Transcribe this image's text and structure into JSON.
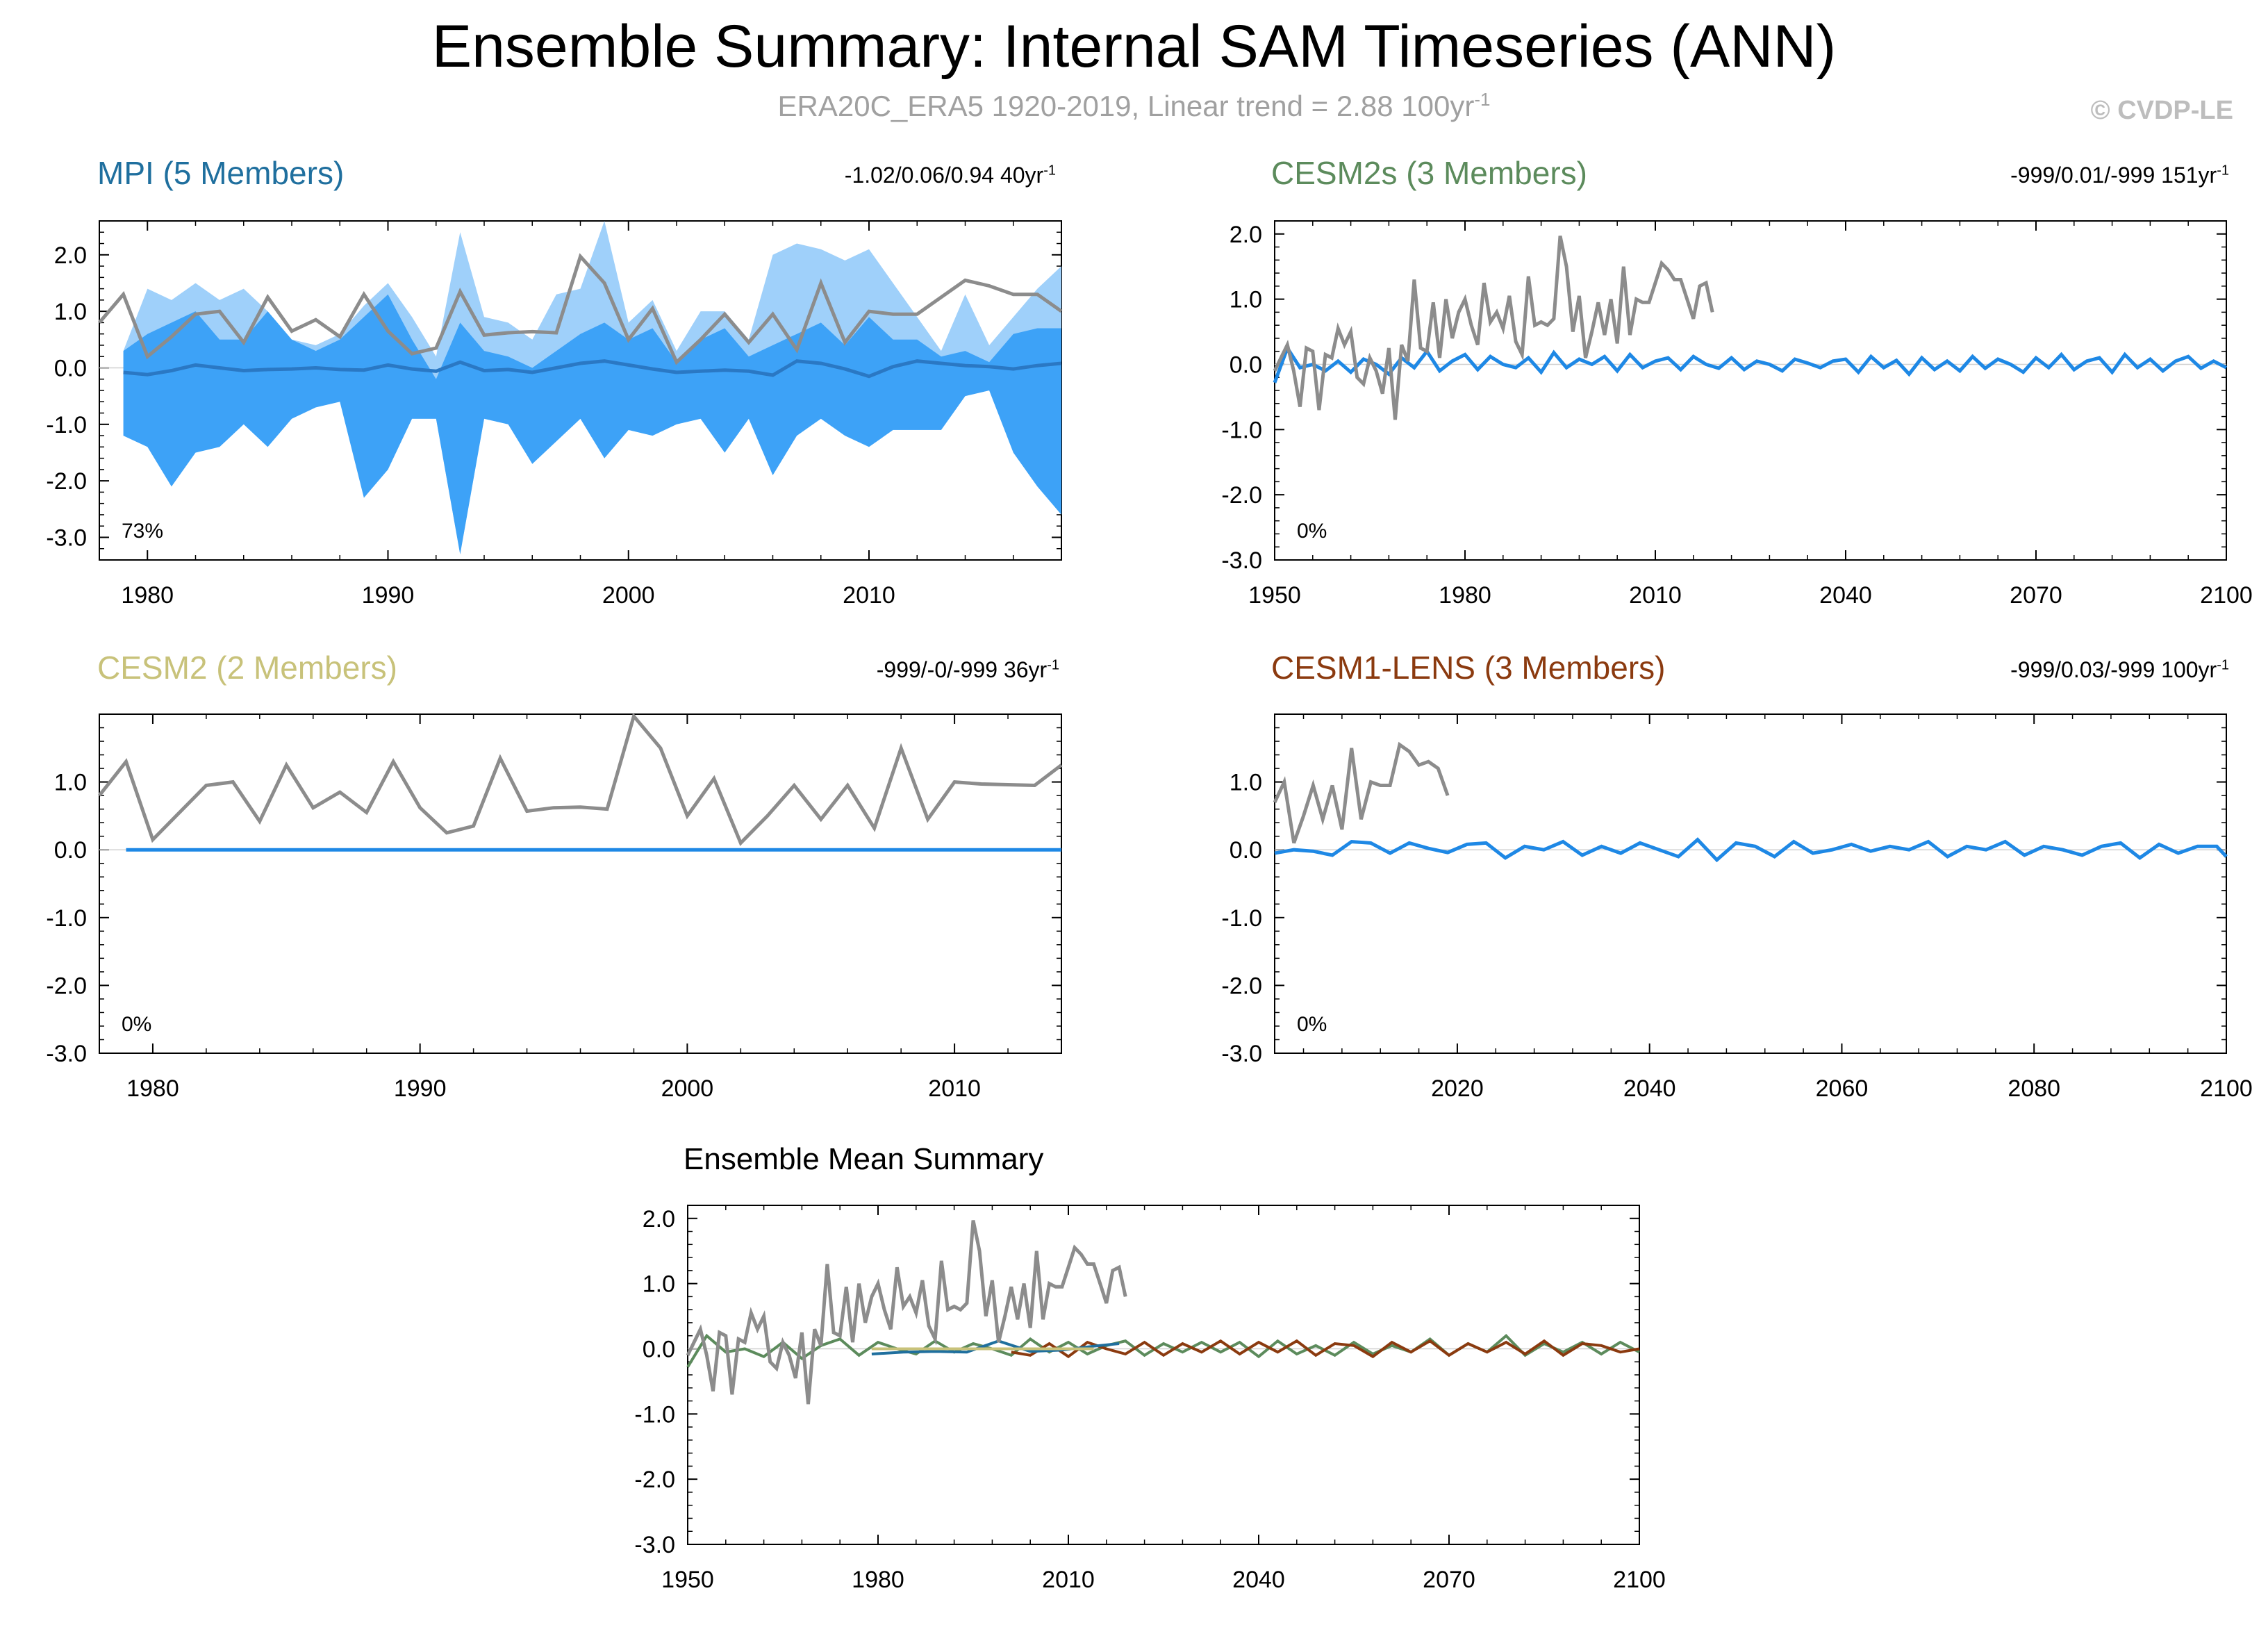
{
  "page": {
    "title": "Ensemble Summary: Internal SAM Timeseries (ANN)",
    "subtitle_main": "ERA20C_ERA5 1920-2019, Linear trend = 2.88 100yr",
    "subtitle_sup": "-1",
    "copyright": "© CVDP-LE"
  },
  "colors": {
    "obs": "#8c8c8c",
    "mean_blue": "#1e88e5",
    "spread_dark": "#3da2f7",
    "spread_light": "#9fd0fa",
    "mpi_title": "#1f6f9e",
    "cesm2s_title": "#5c8b5c",
    "cesm2_title": "#c8c27a",
    "lens_title": "#8b3a0f",
    "ens_mpi": "#1f6f9e",
    "ens_cesm2s": "#5c8b5c",
    "ens_cesm2": "#c8c27a",
    "ens_lens": "#8b3a0f"
  },
  "chart_data": [
    {
      "id": "mpi",
      "type": "area",
      "title": "MPI (5 Members)",
      "stats": "-1.02/0.06/0.94 40yr",
      "stats_sup": "-1",
      "percent": "73%",
      "x_range": [
        1978,
        2018
      ],
      "ylim": [
        -3.4,
        2.6
      ],
      "xticks": [
        1980,
        1990,
        2000,
        2010
      ],
      "yticks": [
        2.0,
        1.0,
        0.0,
        -1.0,
        -2.0,
        -3.0
      ],
      "ytick_labels": [
        "2.0",
        "1.0",
        "0.0",
        "-1.0",
        "-2.0",
        "-3.0"
      ],
      "x": [
        1979,
        1980,
        1981,
        1982,
        1983,
        1984,
        1985,
        1986,
        1987,
        1988,
        1989,
        1990,
        1991,
        1992,
        1993,
        1994,
        1995,
        1996,
        1997,
        1998,
        1999,
        2000,
        2001,
        2002,
        2003,
        2004,
        2005,
        2006,
        2007,
        2008,
        2009,
        2010,
        2011,
        2012,
        2013,
        2014,
        2015,
        2016,
        2017,
        2018
      ],
      "outer_top": [
        0.3,
        1.4,
        1.2,
        1.5,
        1.2,
        1.4,
        1.0,
        0.5,
        0.4,
        0.6,
        1.1,
        1.5,
        0.9,
        0.2,
        2.4,
        0.9,
        0.8,
        0.5,
        1.3,
        1.4,
        2.6,
        0.8,
        1.2,
        0.3,
        1.0,
        1.0,
        0.5,
        2.0,
        2.2,
        2.1,
        1.9,
        2.1,
        1.5,
        0.9,
        0.3,
        1.3,
        0.4,
        0.9,
        1.4,
        1.8
      ],
      "inner_top": [
        0.3,
        0.6,
        0.8,
        1.0,
        0.5,
        0.5,
        1.0,
        0.5,
        0.3,
        0.5,
        0.9,
        1.3,
        0.5,
        -0.2,
        0.8,
        0.3,
        0.2,
        0.0,
        0.3,
        0.6,
        0.8,
        0.5,
        0.7,
        0.1,
        0.5,
        0.7,
        0.2,
        0.4,
        0.6,
        0.8,
        0.4,
        0.9,
        0.5,
        0.5,
        0.2,
        0.3,
        0.1,
        0.6,
        0.7,
        0.7
      ],
      "inner_bottom": [
        -1.2,
        -1.4,
        -2.1,
        -1.5,
        -1.4,
        -1.0,
        -1.4,
        -0.9,
        -0.7,
        -0.6,
        -2.3,
        -1.8,
        -0.9,
        -0.9,
        -3.3,
        -0.9,
        -1.0,
        -1.7,
        -1.3,
        -0.9,
        -1.6,
        -1.1,
        -1.2,
        -1.0,
        -0.9,
        -1.5,
        -0.9,
        -1.9,
        -1.2,
        -0.9,
        -1.2,
        -1.4,
        -1.1,
        -1.1,
        -1.1,
        -0.5,
        -0.4,
        -1.5,
        -2.1,
        -2.6
      ],
      "mean": [
        -0.08,
        -0.12,
        -0.05,
        0.05,
        0.0,
        -0.05,
        -0.03,
        -0.02,
        0.0,
        -0.03,
        -0.04,
        0.05,
        -0.02,
        -0.06,
        0.1,
        -0.05,
        -0.03,
        -0.08,
        0.0,
        0.08,
        0.12,
        0.05,
        -0.02,
        -0.08,
        -0.06,
        -0.04,
        -0.06,
        -0.13,
        0.12,
        0.08,
        -0.02,
        -0.15,
        0.02,
        0.12,
        0.08,
        0.04,
        0.02,
        -0.02,
        0.04,
        0.08
      ],
      "obs_x": [
        1978,
        1979,
        1980,
        1981,
        1982,
        1983,
        1984,
        1985,
        1986,
        1987,
        1988,
        1989,
        1990,
        1991,
        1992,
        1993,
        1994,
        1995,
        1996,
        1997,
        1998,
        1999,
        2000,
        2001,
        2002,
        2003,
        2004,
        2005,
        2006,
        2007,
        2008,
        2009,
        2010,
        2011,
        2012,
        2013,
        2014,
        2015,
        2016,
        2017,
        2018
      ],
      "obs": [
        0.8,
        1.3,
        0.2,
        0.55,
        0.95,
        1.0,
        0.45,
        1.25,
        0.65,
        0.85,
        0.55,
        1.3,
        0.65,
        0.25,
        0.35,
        1.35,
        0.58,
        0.62,
        0.64,
        0.62,
        1.97,
        1.5,
        0.5,
        1.05,
        0.1,
        0.5,
        0.95,
        0.45,
        0.95,
        0.32,
        1.5,
        0.45,
        1.0,
        0.95,
        0.95,
        1.25,
        1.55,
        1.45,
        1.3,
        1.3,
        1.0
      ]
    },
    {
      "id": "cesm2s",
      "type": "line",
      "title": "CESM2s (3 Members)",
      "stats": "-999/0.01/-999 151yr",
      "stats_sup": "-1",
      "percent": "0%",
      "x_range": [
        1950,
        2100
      ],
      "ylim": [
        -3.0,
        2.2
      ],
      "xticks": [
        1950,
        1980,
        2010,
        2040,
        2070,
        2100
      ],
      "yticks": [
        2.0,
        1.0,
        0.0,
        -1.0,
        -2.0,
        -3.0
      ],
      "ytick_labels": [
        "2.0",
        "1.0",
        "0.0",
        "-1.0",
        "-2.0",
        "-3.0"
      ],
      "mean_x": [
        1950,
        1952,
        1954,
        1956,
        1958,
        1960,
        1962,
        1964,
        1966,
        1968,
        1970,
        1972,
        1974,
        1976,
        1978,
        1980,
        1982,
        1984,
        1986,
        1988,
        1990,
        1992,
        1994,
        1996,
        1998,
        2000,
        2002,
        2004,
        2006,
        2008,
        2010,
        2012,
        2014,
        2016,
        2018,
        2020,
        2022,
        2024,
        2026,
        2028,
        2030,
        2032,
        2034,
        2036,
        2038,
        2040,
        2042,
        2044,
        2046,
        2048,
        2050,
        2052,
        2054,
        2056,
        2058,
        2060,
        2062,
        2064,
        2066,
        2068,
        2070,
        2072,
        2074,
        2076,
        2078,
        2080,
        2082,
        2084,
        2086,
        2088,
        2090,
        2092,
        2094,
        2096,
        2098,
        2100
      ],
      "mean": [
        -0.28,
        0.25,
        -0.05,
        0.0,
        -0.1,
        0.05,
        -0.12,
        0.08,
        0.0,
        -0.15,
        0.1,
        -0.05,
        0.2,
        -0.1,
        0.05,
        0.15,
        -0.08,
        0.12,
        0.0,
        -0.05,
        0.1,
        -0.12,
        0.18,
        -0.05,
        0.08,
        0.0,
        0.12,
        -0.1,
        0.15,
        -0.05,
        0.05,
        0.1,
        -0.08,
        0.12,
        0.0,
        -0.06,
        0.1,
        -0.08,
        0.05,
        0.0,
        -0.1,
        0.08,
        0.02,
        -0.05,
        0.05,
        0.08,
        -0.12,
        0.12,
        -0.05,
        0.06,
        -0.15,
        0.1,
        -0.08,
        0.05,
        -0.1,
        0.12,
        -0.06,
        0.08,
        0.0,
        -0.12,
        0.1,
        -0.05,
        0.15,
        -0.08,
        0.05,
        0.1,
        -0.12,
        0.15,
        -0.05,
        0.08,
        -0.1,
        0.05,
        0.12,
        -0.06,
        0.05,
        -0.05
      ],
      "obs_x": [
        1950,
        1951,
        1952,
        1953,
        1954,
        1955,
        1956,
        1957,
        1958,
        1959,
        1960,
        1961,
        1962,
        1963,
        1964,
        1965,
        1966,
        1967,
        1968,
        1969,
        1970,
        1971,
        1972,
        1973,
        1974,
        1975,
        1976,
        1977,
        1978,
        1979,
        1980,
        1981,
        1982,
        1983,
        1984,
        1985,
        1986,
        1987,
        1988,
        1989,
        1990,
        1991,
        1992,
        1993,
        1994,
        1995,
        1996,
        1997,
        1998,
        1999,
        2000,
        2001,
        2002,
        2003,
        2004,
        2005,
        2006,
        2007,
        2008,
        2009,
        2010,
        2011,
        2012,
        2013,
        2014,
        2015,
        2016,
        2017,
        2018,
        2019
      ],
      "obs": [
        -0.1,
        0.1,
        0.3,
        -0.1,
        -0.65,
        0.25,
        0.2,
        -0.7,
        0.15,
        0.1,
        0.55,
        0.3,
        0.5,
        -0.2,
        -0.3,
        0.1,
        -0.1,
        -0.45,
        0.25,
        -0.85,
        0.3,
        0.05,
        1.3,
        0.25,
        0.2,
        0.95,
        0.1,
        1.0,
        0.4,
        0.8,
        1.0,
        0.6,
        0.3,
        1.25,
        0.65,
        0.8,
        0.55,
        1.05,
        0.35,
        0.15,
        1.35,
        0.6,
        0.65,
        0.6,
        0.7,
        1.97,
        1.5,
        0.5,
        1.05,
        0.1,
        0.5,
        0.95,
        0.45,
        1.0,
        0.32,
        1.5,
        0.45,
        1.0,
        0.95,
        0.95,
        1.25,
        1.55,
        1.45,
        1.3,
        1.3,
        1.0,
        0.7,
        1.2,
        1.25,
        0.8
      ]
    },
    {
      "id": "cesm2",
      "type": "line",
      "title": "CESM2 (2 Members)",
      "stats": "-999/-0/-999 36yr",
      "stats_sup": "-1",
      "percent": "0%",
      "x_range": [
        1978,
        2014
      ],
      "ylim": [
        -3.0,
        2.0
      ],
      "xticks": [
        1980,
        1990,
        2000,
        2010
      ],
      "yticks": [
        1.0,
        0.0,
        -1.0,
        -2.0,
        -3.0
      ],
      "ytick_labels": [
        "1.0",
        "0.0",
        "-1.0",
        "-2.0",
        "-3.0"
      ],
      "mean_x": [
        1979,
        2014
      ],
      "mean": [
        0.0,
        0.0
      ],
      "obs_x": [
        1978,
        1979,
        1980,
        1981,
        1982,
        1983,
        1984,
        1985,
        1986,
        1987,
        1988,
        1989,
        1990,
        1991,
        1992,
        1993,
        1994,
        1995,
        1996,
        1997,
        1998,
        1999,
        2000,
        2001,
        2002,
        2003,
        2004,
        2005,
        2006,
        2007,
        2008,
        2009,
        2010,
        2011,
        2012,
        2013,
        2014
      ],
      "obs": [
        0.8,
        1.3,
        0.15,
        0.55,
        0.95,
        1.0,
        0.42,
        1.25,
        0.62,
        0.85,
        0.55,
        1.3,
        0.62,
        0.25,
        0.35,
        1.35,
        0.57,
        0.62,
        0.63,
        0.6,
        1.97,
        1.5,
        0.5,
        1.05,
        0.1,
        0.5,
        0.95,
        0.45,
        0.95,
        0.32,
        1.5,
        0.45,
        1.0,
        0.97,
        0.96,
        0.95,
        1.25
      ]
    },
    {
      "id": "lens",
      "type": "line",
      "title": "CESM1-LENS (3 Members)",
      "stats": "-999/0.03/-999 100yr",
      "stats_sup": "-1",
      "percent": "0%",
      "x_range": [
        2001,
        2100
      ],
      "ylim": [
        -3.0,
        2.0
      ],
      "xticks": [
        2020,
        2040,
        2060,
        2080,
        2100
      ],
      "yticks": [
        1.0,
        0.0,
        -1.0,
        -2.0,
        -3.0
      ],
      "ytick_labels": [
        "1.0",
        "0.0",
        "-1.0",
        "-2.0",
        "-3.0"
      ],
      "mean_x": [
        2001,
        2003,
        2005,
        2007,
        2009,
        2011,
        2013,
        2015,
        2017,
        2019,
        2021,
        2023,
        2025,
        2027,
        2029,
        2031,
        2033,
        2035,
        2037,
        2039,
        2041,
        2043,
        2045,
        2047,
        2049,
        2051,
        2053,
        2055,
        2057,
        2059,
        2061,
        2063,
        2065,
        2067,
        2069,
        2071,
        2073,
        2075,
        2077,
        2079,
        2081,
        2083,
        2085,
        2087,
        2089,
        2091,
        2093,
        2095,
        2097,
        2099,
        2100
      ],
      "mean": [
        -0.05,
        0.0,
        -0.02,
        -0.08,
        0.12,
        0.1,
        -0.05,
        0.1,
        0.02,
        -0.04,
        0.08,
        0.1,
        -0.12,
        0.05,
        0.0,
        0.12,
        -0.08,
        0.05,
        -0.05,
        0.1,
        0.0,
        -0.1,
        0.15,
        -0.15,
        0.1,
        0.05,
        -0.1,
        0.12,
        -0.05,
        0.0,
        0.08,
        -0.02,
        0.05,
        0.0,
        0.12,
        -0.1,
        0.05,
        0.0,
        0.12,
        -0.08,
        0.05,
        0.0,
        -0.08,
        0.05,
        0.1,
        -0.12,
        0.08,
        -0.05,
        0.05,
        0.05,
        -0.1
      ],
      "obs_x": [
        2001,
        2002,
        2003,
        2004,
        2005,
        2006,
        2007,
        2008,
        2009,
        2010,
        2011,
        2012,
        2013,
        2014,
        2015,
        2016,
        2017,
        2018,
        2019
      ],
      "obs": [
        0.7,
        1.0,
        0.1,
        0.5,
        0.95,
        0.45,
        0.95,
        0.3,
        1.5,
        0.45,
        1.0,
        0.95,
        0.95,
        1.55,
        1.45,
        1.25,
        1.3,
        1.2,
        0.8
      ]
    },
    {
      "id": "ensmean",
      "type": "line",
      "title": "Ensemble Mean Summary",
      "x_range": [
        1950,
        2100
      ],
      "ylim": [
        -3.0,
        2.2
      ],
      "xticks": [
        1950,
        1980,
        2010,
        2040,
        2070,
        2100
      ],
      "yticks": [
        2.0,
        1.0,
        0.0,
        -1.0,
        -2.0,
        -3.0
      ],
      "ytick_labels": [
        "2.0",
        "1.0",
        "0.0",
        "-1.0",
        "-2.0",
        "-3.0"
      ],
      "series_x": [
        1950,
        1953,
        1956,
        1959,
        1962,
        1965,
        1968,
        1971,
        1974,
        1977,
        1980,
        1983,
        1986,
        1989,
        1992,
        1995,
        1998,
        2001,
        2004,
        2007,
        2010,
        2013,
        2016,
        2019,
        2022,
        2025,
        2028,
        2031,
        2034,
        2037,
        2040,
        2043,
        2046,
        2049,
        2052,
        2055,
        2058,
        2061,
        2064,
        2067,
        2070,
        2073,
        2076,
        2079,
        2082,
        2085,
        2088,
        2091,
        2094,
        2097,
        2100
      ],
      "cesm2s": [
        -0.28,
        0.2,
        -0.05,
        0.0,
        -0.12,
        0.1,
        -0.15,
        0.05,
        0.15,
        -0.1,
        0.1,
        0.0,
        -0.08,
        0.12,
        -0.05,
        0.08,
        0.0,
        -0.1,
        0.15,
        -0.05,
        0.1,
        -0.08,
        0.05,
        0.12,
        -0.1,
        0.08,
        -0.05,
        0.1,
        -0.05,
        0.1,
        -0.12,
        0.12,
        -0.08,
        0.05,
        -0.1,
        0.1,
        -0.08,
        0.05,
        -0.05,
        0.15,
        -0.1,
        0.08,
        -0.05,
        0.2,
        -0.1,
        0.08,
        -0.05,
        0.1,
        -0.08,
        0.1,
        -0.05
      ],
      "lens_x": [
        2001,
        2004,
        2007,
        2010,
        2013,
        2016,
        2019,
        2022,
        2025,
        2028,
        2031,
        2034,
        2037,
        2040,
        2043,
        2046,
        2049,
        2052,
        2055,
        2058,
        2061,
        2064,
        2067,
        2070,
        2073,
        2076,
        2079,
        2082,
        2085,
        2088,
        2091,
        2094,
        2097,
        2100
      ],
      "lens": [
        -0.05,
        -0.1,
        0.08,
        -0.12,
        0.1,
        0.0,
        -0.08,
        0.1,
        -0.1,
        0.08,
        -0.05,
        0.12,
        -0.08,
        0.1,
        -0.05,
        0.12,
        -0.1,
        0.08,
        0.05,
        -0.12,
        0.1,
        -0.05,
        0.12,
        -0.1,
        0.08,
        -0.05,
        0.1,
        -0.08,
        0.12,
        -0.1,
        0.08,
        0.05,
        -0.05,
        0.0
      ],
      "mpi_x": [
        1979,
        1984,
        1989,
        1994,
        1999,
        2004,
        2009,
        2014,
        2018
      ],
      "mpi": [
        -0.08,
        -0.05,
        -0.04,
        -0.05,
        0.12,
        -0.04,
        -0.02,
        0.04,
        0.08
      ],
      "cesm2_x": [
        1979,
        2014
      ],
      "cesm2": [
        0.0,
        0.0
      ],
      "obs_ref": "cesm2s"
    }
  ]
}
